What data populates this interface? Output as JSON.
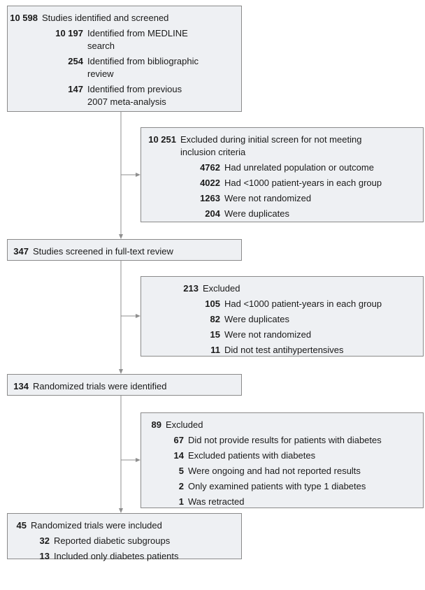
{
  "flow": [
    {
      "count": "10 598",
      "label": "Studies identified and screened",
      "items": [
        {
          "count": "10 197",
          "label": "Identified from MEDLINE\nsearch"
        },
        {
          "count": "254",
          "label": "Identified from bibliographic\nreview"
        },
        {
          "count": "147",
          "label": "Identified from previous\n2007 meta-analysis"
        }
      ]
    },
    {
      "count": "10 251",
      "label": "Excluded during initial screen for not meeting\ninclusion criteria",
      "items": [
        {
          "count": "4762",
          "label": "Had unrelated population or outcome"
        },
        {
          "count": "4022",
          "label": "Had <1000 patient-years in each group"
        },
        {
          "count": "1263",
          "label": "Were not randomized"
        },
        {
          "count": "204",
          "label": "Were duplicates"
        }
      ]
    },
    {
      "count": "347",
      "label": "Studies screened in full-text review",
      "items": []
    },
    {
      "count": "213",
      "label": "Excluded",
      "items": [
        {
          "count": "105",
          "label": "Had <1000 patient-years in each group"
        },
        {
          "count": "82",
          "label": "Were duplicates"
        },
        {
          "count": "15",
          "label": "Were not randomized"
        },
        {
          "count": "11",
          "label": "Did not test antihypertensives"
        }
      ]
    },
    {
      "count": "134",
      "label": "Randomized trials were identified",
      "items": []
    },
    {
      "count": "89",
      "label": "Excluded",
      "items": [
        {
          "count": "67",
          "label": "Did not provide results for patients with diabetes"
        },
        {
          "count": "14",
          "label": "Excluded patients with diabetes"
        },
        {
          "count": "5",
          "label": "Were ongoing and had not reported results"
        },
        {
          "count": "2",
          "label": "Only examined patients with type 1 diabetes"
        },
        {
          "count": "1",
          "label": "Was retracted"
        }
      ]
    },
    {
      "count": "45",
      "label": "Randomized trials were included",
      "items": [
        {
          "count": "32",
          "label": "Reported diabetic subgroups"
        },
        {
          "count": "13",
          "label": "Included only diabetes patients"
        }
      ]
    }
  ]
}
